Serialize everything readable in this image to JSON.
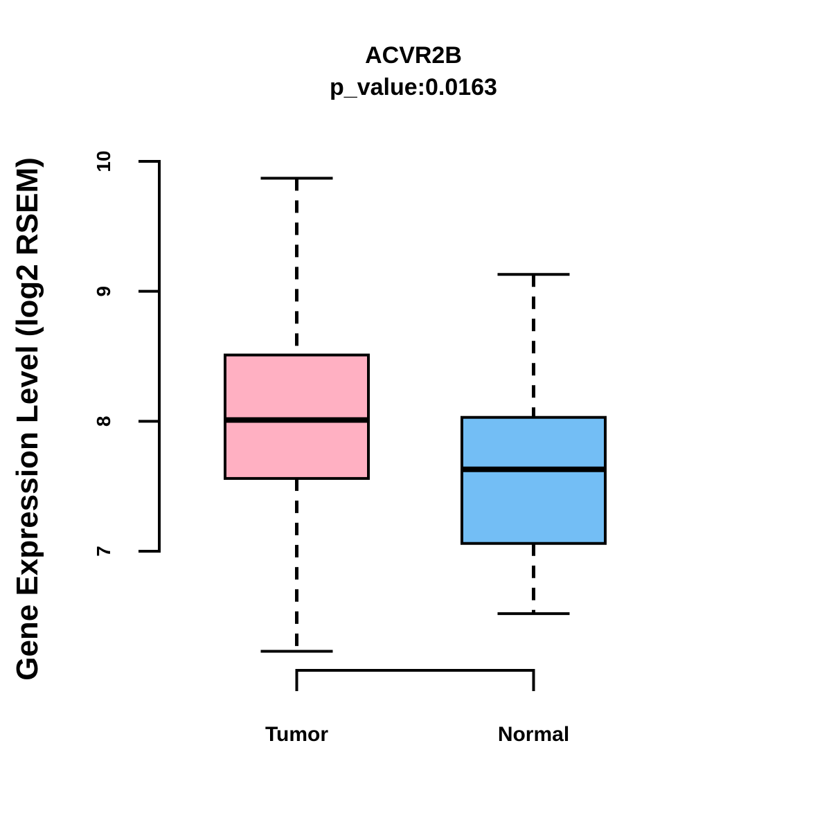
{
  "chart_data": {
    "type": "boxplot",
    "title": "ACVR2B",
    "subtitle": "p_value:0.0163",
    "ylabel": "Gene Expression Level (log2 RSEM)",
    "xlabel": "",
    "categories": [
      "Tumor",
      "Normal"
    ],
    "y_ticks": [
      7,
      8,
      9,
      10
    ],
    "y_axis_range": [
      7,
      10
    ],
    "grid": false,
    "legend": false,
    "series": [
      {
        "name": "Tumor",
        "whisker_low": 6.23,
        "q1": 7.56,
        "median": 8.01,
        "q3": 8.51,
        "whisker_high": 9.87,
        "fill": "#FFB0C2"
      },
      {
        "name": "Normal",
        "whisker_low": 6.52,
        "q1": 7.06,
        "median": 7.63,
        "q3": 8.03,
        "whisker_high": 9.13,
        "fill": "#73BEF5"
      }
    ],
    "stroke_color": "#000000",
    "background": "#FFFFFF"
  }
}
